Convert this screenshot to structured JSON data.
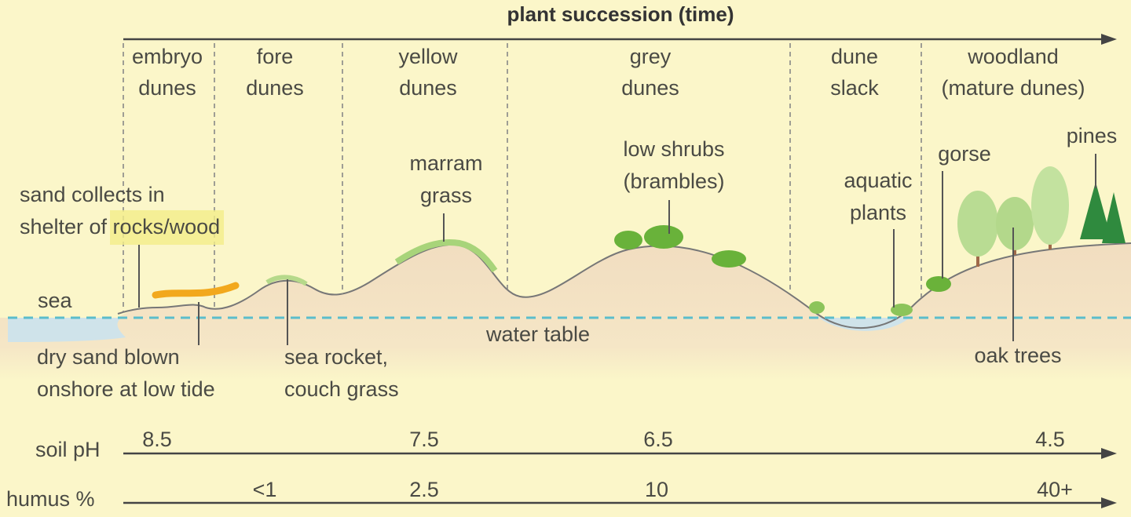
{
  "title": "plant succession (time)",
  "zones": [
    {
      "lines": [
        "embryo",
        "dunes"
      ]
    },
    {
      "lines": [
        "fore",
        "dunes"
      ]
    },
    {
      "lines": [
        "yellow",
        "dunes"
      ]
    },
    {
      "lines": [
        "grey",
        "dunes"
      ]
    },
    {
      "lines": [
        "dune",
        "slack"
      ]
    },
    {
      "lines": [
        "woodland",
        "(mature dunes)"
      ]
    }
  ],
  "annotations": [
    {
      "lines": [
        "sand collects in",
        "shelter of rocks/wood"
      ]
    },
    {
      "lines": [
        "sea"
      ]
    },
    {
      "lines": [
        "dry sand blown",
        "onshore at low tide"
      ]
    },
    {
      "lines": [
        "sea rocket,",
        "couch grass"
      ]
    },
    {
      "lines": [
        "marram",
        "grass"
      ]
    },
    {
      "lines": [
        "water table"
      ]
    },
    {
      "lines": [
        "low shrubs",
        "(brambles)"
      ]
    },
    {
      "lines": [
        "aquatic",
        "plants"
      ]
    },
    {
      "lines": [
        "gorse"
      ]
    },
    {
      "lines": [
        "pines"
      ]
    },
    {
      "lines": [
        "oak trees"
      ]
    }
  ],
  "scales": [
    {
      "label": "soil pH",
      "values": [
        "8.5",
        "7.5",
        "6.5",
        "4.5"
      ]
    },
    {
      "label": "humus %",
      "values": [
        "<1",
        "2.5",
        "10",
        "40+"
      ]
    }
  ]
}
